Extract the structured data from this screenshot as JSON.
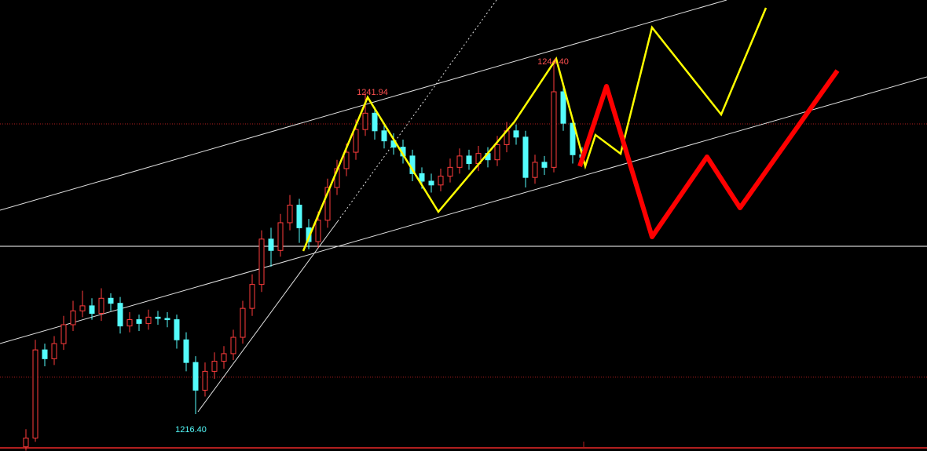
{
  "chart_data": {
    "type": "candlestick",
    "ylim": [
      1213.47,
      1249.29
    ],
    "up_color": "#ff3c3c",
    "down_color": "#54fcfc",
    "open": [
      1213.8,
      1214.5,
      1221.5,
      1220.8,
      1222.0,
      1223.5,
      1224.6,
      1225.0,
      1224.4,
      1225.6,
      1225.2,
      1223.4,
      1223.9,
      1223.6,
      1224.1,
      1224.0,
      1223.9,
      1222.3,
      1220.5,
      1218.3,
      1219.8,
      1220.6,
      1221.2,
      1222.5,
      1224.8,
      1226.7,
      1230.3,
      1229.4,
      1231.6,
      1233.0,
      1231.2,
      1230.1,
      1231.8,
      1234.4,
      1235.9,
      1237.2,
      1239.0,
      1240.3,
      1238.9,
      1238.1,
      1237.6,
      1236.9,
      1235.5,
      1234.9,
      1234.6,
      1235.3,
      1236.0,
      1236.9,
      1236.3,
      1237.1,
      1236.6,
      1237.8,
      1238.9,
      1238.4,
      1235.2,
      1236.4,
      1236.0,
      1242.0,
      1239.5,
      1237.0
    ],
    "high": [
      1215.2,
      1222.3,
      1222.0,
      1222.6,
      1224.2,
      1225.4,
      1226.2,
      1225.6,
      1226.4,
      1226.0,
      1225.7,
      1224.5,
      1224.3,
      1224.7,
      1224.6,
      1224.5,
      1224.3,
      1222.9,
      1221.0,
      1220.5,
      1221.3,
      1221.8,
      1223.1,
      1225.4,
      1227.5,
      1231.0,
      1231.2,
      1232.3,
      1233.8,
      1233.5,
      1231.9,
      1232.5,
      1235.1,
      1236.6,
      1237.9,
      1239.8,
      1241.94,
      1240.8,
      1239.4,
      1238.7,
      1238.2,
      1237.4,
      1236.0,
      1235.5,
      1235.9,
      1236.7,
      1237.5,
      1237.4,
      1237.7,
      1237.6,
      1238.5,
      1239.6,
      1239.4,
      1238.9,
      1237.0,
      1236.9,
      1244.4,
      1242.6,
      1240.0,
      1237.6
    ],
    "low": [
      1213.5,
      1214.2,
      1220.2,
      1220.3,
      1221.5,
      1223.0,
      1224.1,
      1223.9,
      1223.8,
      1224.6,
      1222.8,
      1222.9,
      1223.0,
      1223.1,
      1223.5,
      1223.3,
      1221.6,
      1219.8,
      1216.4,
      1217.8,
      1219.2,
      1220.0,
      1220.7,
      1222.0,
      1224.2,
      1226.1,
      1228.1,
      1228.9,
      1231.0,
      1230.0,
      1229.5,
      1229.6,
      1231.2,
      1233.8,
      1235.3,
      1236.6,
      1238.5,
      1238.2,
      1237.5,
      1237.0,
      1236.3,
      1234.9,
      1234.3,
      1234.0,
      1234.1,
      1234.8,
      1235.5,
      1235.8,
      1235.7,
      1236.0,
      1236.1,
      1237.2,
      1237.8,
      1234.4,
      1234.7,
      1235.4,
      1235.6,
      1238.9,
      1236.3,
      1236.2
    ],
    "close": [
      1214.5,
      1221.5,
      1220.8,
      1222.0,
      1223.5,
      1224.6,
      1225.0,
      1224.4,
      1225.6,
      1225.2,
      1223.4,
      1223.9,
      1223.6,
      1224.1,
      1224.0,
      1223.9,
      1222.3,
      1220.5,
      1218.3,
      1219.8,
      1220.6,
      1221.2,
      1222.5,
      1224.8,
      1226.7,
      1230.3,
      1229.4,
      1231.6,
      1233.0,
      1231.2,
      1230.1,
      1231.8,
      1234.4,
      1235.9,
      1237.2,
      1239.0,
      1240.3,
      1238.9,
      1238.1,
      1237.6,
      1236.9,
      1235.5,
      1234.9,
      1234.6,
      1235.3,
      1236.0,
      1236.9,
      1236.3,
      1237.1,
      1236.6,
      1237.8,
      1238.9,
      1238.4,
      1235.2,
      1236.4,
      1236.0,
      1242.0,
      1239.5,
      1237.0,
      1236.8
    ],
    "levels": [
      {
        "value": 1239.45,
        "color": "#b01e1e",
        "dashed": true
      },
      {
        "value": 1229.73,
        "color": "#ffffff",
        "dashed": false
      },
      {
        "value": 1219.33,
        "color": "#b01e1e",
        "dashed": true
      }
    ],
    "annotations": [
      {
        "text": "1241.94",
        "color": "#ff5050"
      },
      {
        "text": "1244.40",
        "color": "#ff5050"
      },
      {
        "text": "1216.40",
        "color": "#54fcfc"
      }
    ]
  }
}
